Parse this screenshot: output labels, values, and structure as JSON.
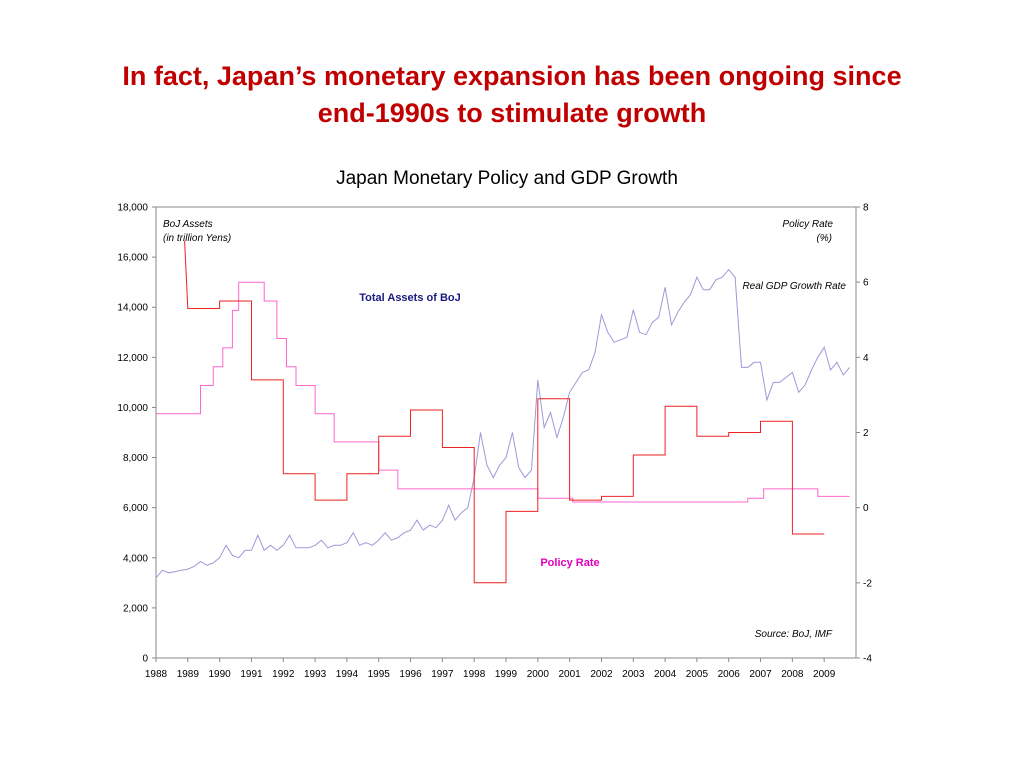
{
  "slide": {
    "title_line1": "In fact, Japan’s monetary expansion has been ongoing since",
    "title_line2": "end-1990s to stimulate growth",
    "title_color": "#c00000"
  },
  "chart_data": {
    "type": "line",
    "title": "Japan Monetary Policy and GDP Growth",
    "left_axis_label_line1": "BoJ Assets",
    "left_axis_label_line2": "(in trillion Yens)",
    "right_axis_label_line1": "Policy Rate",
    "right_axis_label_line2": "(%)",
    "source": "Source: BoJ, IMF",
    "xlim": [
      1988,
      2010
    ],
    "y_left_lim": [
      0,
      18000
    ],
    "y_right_lim": [
      -4,
      8
    ],
    "x_ticks": [
      "1988",
      "1989",
      "1990",
      "1991",
      "1992",
      "1993",
      "1994",
      "1995",
      "1996",
      "1997",
      "1998",
      "1999",
      "2000",
      "2001",
      "2002",
      "2003",
      "2004",
      "2005",
      "2006",
      "2007",
      "2008",
      "2009"
    ],
    "y_left_ticks": [
      "0",
      "2,000",
      "4,000",
      "6,000",
      "8,000",
      "10,000",
      "12,000",
      "14,000",
      "16,000",
      "18,000"
    ],
    "y_right_ticks": [
      "-4",
      "-2",
      "0",
      "2",
      "4",
      "6",
      "8"
    ],
    "series": [
      {
        "name": "Total Assets of BoJ",
        "axis": "left",
        "color": "#9a9ad8",
        "label_color": "#1a1a80",
        "points": [
          [
            1988.0,
            3200
          ],
          [
            1988.2,
            3500
          ],
          [
            1988.4,
            3400
          ],
          [
            1988.6,
            3450
          ],
          [
            1988.8,
            3500
          ],
          [
            1989.0,
            3550
          ],
          [
            1989.2,
            3650
          ],
          [
            1989.4,
            3850
          ],
          [
            1989.6,
            3700
          ],
          [
            1989.8,
            3800
          ],
          [
            1990.0,
            4000
          ],
          [
            1990.2,
            4500
          ],
          [
            1990.4,
            4100
          ],
          [
            1990.6,
            4000
          ],
          [
            1990.8,
            4300
          ],
          [
            1991.0,
            4300
          ],
          [
            1991.2,
            4900
          ],
          [
            1991.4,
            4300
          ],
          [
            1991.6,
            4500
          ],
          [
            1991.8,
            4300
          ],
          [
            1992.0,
            4500
          ],
          [
            1992.2,
            4900
          ],
          [
            1992.4,
            4400
          ],
          [
            1992.6,
            4400
          ],
          [
            1992.8,
            4400
          ],
          [
            1993.0,
            4500
          ],
          [
            1993.2,
            4700
          ],
          [
            1993.4,
            4400
          ],
          [
            1993.6,
            4500
          ],
          [
            1993.8,
            4500
          ],
          [
            1994.0,
            4600
          ],
          [
            1994.2,
            5000
          ],
          [
            1994.4,
            4500
          ],
          [
            1994.6,
            4600
          ],
          [
            1994.8,
            4500
          ],
          [
            1995.0,
            4700
          ],
          [
            1995.2,
            5000
          ],
          [
            1995.4,
            4700
          ],
          [
            1995.6,
            4800
          ],
          [
            1995.8,
            5000
          ],
          [
            1996.0,
            5100
          ],
          [
            1996.2,
            5500
          ],
          [
            1996.4,
            5100
          ],
          [
            1996.6,
            5300
          ],
          [
            1996.8,
            5200
          ],
          [
            1997.0,
            5500
          ],
          [
            1997.2,
            6100
          ],
          [
            1997.4,
            5500
          ],
          [
            1997.6,
            5800
          ],
          [
            1997.8,
            6000
          ],
          [
            1998.0,
            7200
          ],
          [
            1998.2,
            9000
          ],
          [
            1998.4,
            7700
          ],
          [
            1998.6,
            7200
          ],
          [
            1998.8,
            7700
          ],
          [
            1999.0,
            8000
          ],
          [
            1999.2,
            9000
          ],
          [
            1999.4,
            7600
          ],
          [
            1999.6,
            7200
          ],
          [
            1999.8,
            7500
          ],
          [
            2000.0,
            11100
          ],
          [
            2000.2,
            9200
          ],
          [
            2000.4,
            9800
          ],
          [
            2000.6,
            8800
          ],
          [
            2000.8,
            9600
          ],
          [
            2001.0,
            10600
          ],
          [
            2001.2,
            11000
          ],
          [
            2001.4,
            11400
          ],
          [
            2001.6,
            11500
          ],
          [
            2001.8,
            12200
          ],
          [
            2002.0,
            13700
          ],
          [
            2002.2,
            13000
          ],
          [
            2002.4,
            12600
          ],
          [
            2002.6,
            12700
          ],
          [
            2002.8,
            12800
          ],
          [
            2003.0,
            13900
          ],
          [
            2003.2,
            13000
          ],
          [
            2003.4,
            12900
          ],
          [
            2003.6,
            13400
          ],
          [
            2003.8,
            13600
          ],
          [
            2004.0,
            14800
          ],
          [
            2004.2,
            13300
          ],
          [
            2004.4,
            13800
          ],
          [
            2004.6,
            14200
          ],
          [
            2004.8,
            14500
          ],
          [
            2005.0,
            15200
          ],
          [
            2005.2,
            14700
          ],
          [
            2005.4,
            14700
          ],
          [
            2005.6,
            15100
          ],
          [
            2005.8,
            15200
          ],
          [
            2006.0,
            15500
          ],
          [
            2006.2,
            15200
          ],
          [
            2006.4,
            11600
          ],
          [
            2006.6,
            11600
          ],
          [
            2006.8,
            11800
          ],
          [
            2007.0,
            11800
          ],
          [
            2007.2,
            10300
          ],
          [
            2007.4,
            11000
          ],
          [
            2007.6,
            11000
          ],
          [
            2007.8,
            11200
          ],
          [
            2008.0,
            11400
          ],
          [
            2008.2,
            10600
          ],
          [
            2008.4,
            10900
          ],
          [
            2008.6,
            11500
          ],
          [
            2008.8,
            12000
          ],
          [
            2009.0,
            12400
          ],
          [
            2009.2,
            11500
          ],
          [
            2009.4,
            11800
          ],
          [
            2009.6,
            11300
          ],
          [
            2009.8,
            11600
          ]
        ]
      },
      {
        "name": "Policy Rate",
        "axis": "right",
        "color": "#ff66cc",
        "label_color": "#e000c0",
        "points": [
          [
            1988.0,
            2.5
          ],
          [
            1989.4,
            2.5
          ],
          [
            1989.4,
            3.25
          ],
          [
            1989.8,
            3.25
          ],
          [
            1989.8,
            3.75
          ],
          [
            1990.1,
            3.75
          ],
          [
            1990.1,
            4.25
          ],
          [
            1990.4,
            4.25
          ],
          [
            1990.4,
            5.25
          ],
          [
            1990.6,
            5.25
          ],
          [
            1990.6,
            6.0
          ],
          [
            1991.4,
            6.0
          ],
          [
            1991.4,
            5.5
          ],
          [
            1991.8,
            5.5
          ],
          [
            1991.8,
            4.5
          ],
          [
            1992.1,
            4.5
          ],
          [
            1992.1,
            3.75
          ],
          [
            1992.4,
            3.75
          ],
          [
            1992.4,
            3.25
          ],
          [
            1993.0,
            3.25
          ],
          [
            1993.0,
            2.5
          ],
          [
            1993.6,
            2.5
          ],
          [
            1993.6,
            1.75
          ],
          [
            1995.0,
            1.75
          ],
          [
            1995.0,
            1.0
          ],
          [
            1995.6,
            1.0
          ],
          [
            1995.6,
            0.5
          ],
          [
            2000.0,
            0.5
          ],
          [
            2000.0,
            0.25
          ],
          [
            2001.1,
            0.25
          ],
          [
            2001.1,
            0.15
          ],
          [
            2006.6,
            0.15
          ],
          [
            2006.6,
            0.25
          ],
          [
            2007.1,
            0.25
          ],
          [
            2007.1,
            0.5
          ],
          [
            2008.8,
            0.5
          ],
          [
            2008.8,
            0.3
          ],
          [
            2009.8,
            0.3
          ]
        ]
      },
      {
        "name": "Real GDP Growth Rate",
        "axis": "right",
        "color": "#ee2222",
        "label_color": "#000000",
        "points": [
          [
            1988.9,
            7.1
          ],
          [
            1989.0,
            5.3
          ],
          [
            1990.0,
            5.3
          ],
          [
            1990.0,
            5.5
          ],
          [
            1991.0,
            5.5
          ],
          [
            1991.0,
            3.4
          ],
          [
            1992.0,
            3.4
          ],
          [
            1992.0,
            0.9
          ],
          [
            1993.0,
            0.9
          ],
          [
            1993.0,
            0.2
          ],
          [
            1994.0,
            0.2
          ],
          [
            1994.0,
            0.9
          ],
          [
            1995.0,
            0.9
          ],
          [
            1995.0,
            1.9
          ],
          [
            1996.0,
            1.9
          ],
          [
            1996.0,
            2.6
          ],
          [
            1997.0,
            2.6
          ],
          [
            1997.0,
            1.6
          ],
          [
            1998.0,
            1.6
          ],
          [
            1998.0,
            -2.0
          ],
          [
            1999.0,
            -2.0
          ],
          [
            1999.0,
            -0.1
          ],
          [
            2000.0,
            -0.1
          ],
          [
            2000.0,
            2.9
          ],
          [
            2001.0,
            2.9
          ],
          [
            2001.0,
            0.2
          ],
          [
            2002.0,
            0.2
          ],
          [
            2002.0,
            0.3
          ],
          [
            2003.0,
            0.3
          ],
          [
            2003.0,
            1.4
          ],
          [
            2004.0,
            1.4
          ],
          [
            2004.0,
            2.7
          ],
          [
            2005.0,
            2.7
          ],
          [
            2005.0,
            1.9
          ],
          [
            2006.0,
            1.9
          ],
          [
            2006.0,
            2.0
          ],
          [
            2007.0,
            2.0
          ],
          [
            2007.0,
            2.3
          ],
          [
            2008.0,
            2.3
          ],
          [
            2008.0,
            -0.7
          ],
          [
            2009.0,
            -0.7
          ]
        ]
      }
    ]
  }
}
